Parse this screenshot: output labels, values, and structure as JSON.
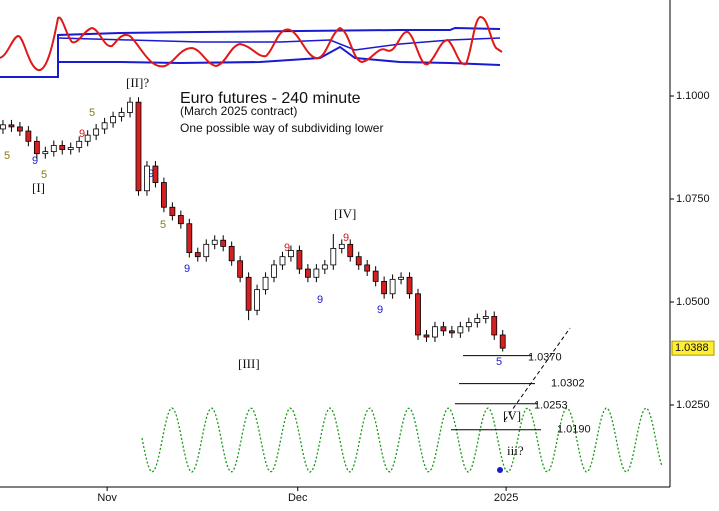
{
  "chart_data": {
    "type": "candlestick",
    "title": "Euro futures - 240 minute",
    "subtitle": "(March  2025 contract)",
    "note": "One possible way of subdividing lower",
    "candles": {
      "open": [
        1.092,
        1.093,
        1.0925,
        1.0915,
        1.089,
        1.086,
        1.0865,
        1.088,
        1.087,
        1.0875,
        1.089,
        1.0905,
        1.092,
        1.0935,
        1.095,
        1.096,
        1.0985,
        1.077,
        1.083,
        1.079,
        1.073,
        1.071,
        1.069,
        1.062,
        1.061,
        1.064,
        1.065,
        1.0635,
        1.06,
        1.056,
        1.048,
        1.053,
        1.056,
        1.059,
        1.061,
        1.0625,
        1.058,
        1.056,
        1.058,
        1.059,
        1.063,
        1.064,
        1.061,
        1.059,
        1.0575,
        1.055,
        1.052,
        1.0555,
        1.056,
        1.052,
        1.042,
        1.0415,
        1.044,
        1.043,
        1.0425,
        1.044,
        1.045,
        1.046,
        1.0465,
        1.042
      ],
      "high": [
        1.0942,
        1.0942,
        1.0937,
        1.0927,
        1.0902,
        1.0877,
        1.0892,
        1.0892,
        1.0887,
        1.0902,
        1.0917,
        1.0932,
        1.0947,
        1.0962,
        1.0972,
        1.0997,
        1.0997,
        1.0842,
        1.0842,
        1.0802,
        1.0742,
        1.0722,
        1.0702,
        1.0632,
        1.0652,
        1.0662,
        1.0662,
        1.0647,
        1.0612,
        1.0572,
        1.0542,
        1.0572,
        1.0602,
        1.0622,
        1.0637,
        1.0637,
        1.0592,
        1.0592,
        1.0602,
        1.0665,
        1.0652,
        1.0652,
        1.0622,
        1.0602,
        1.0587,
        1.0562,
        1.0567,
        1.0572,
        1.0572,
        1.0532,
        1.0432,
        1.0452,
        1.0452,
        1.0442,
        1.0452,
        1.0462,
        1.0472,
        1.048,
        1.0477,
        1.0432
      ],
      "low": [
        1.0908,
        1.0913,
        1.0903,
        1.0878,
        1.0848,
        1.0848,
        1.0853,
        1.0858,
        1.0858,
        1.0863,
        1.0878,
        1.0893,
        1.0908,
        1.0923,
        1.0938,
        1.0948,
        1.0758,
        1.0758,
        1.0778,
        1.0718,
        1.0698,
        1.0678,
        1.0608,
        1.0598,
        1.0598,
        1.0628,
        1.0623,
        1.0588,
        1.0548,
        1.0456,
        1.0468,
        1.0518,
        1.0548,
        1.0578,
        1.0598,
        1.0568,
        1.0548,
        1.0548,
        1.0568,
        1.0578,
        1.0618,
        1.0598,
        1.0578,
        1.0563,
        1.0538,
        1.0508,
        1.0508,
        1.0543,
        1.0508,
        1.0408,
        1.0403,
        1.0403,
        1.0418,
        1.0413,
        1.0413,
        1.0428,
        1.0438,
        1.0448,
        1.0408,
        1.038
      ],
      "close": [
        1.093,
        1.0925,
        1.0915,
        1.089,
        1.086,
        1.0865,
        1.088,
        1.087,
        1.0875,
        1.089,
        1.0905,
        1.092,
        1.0935,
        1.095,
        1.096,
        1.0985,
        1.077,
        1.083,
        1.079,
        1.073,
        1.071,
        1.069,
        1.062,
        1.061,
        1.064,
        1.065,
        1.0635,
        1.06,
        1.056,
        1.048,
        1.053,
        1.056,
        1.059,
        1.061,
        1.0625,
        1.058,
        1.056,
        1.058,
        1.059,
        1.063,
        1.064,
        1.061,
        1.059,
        1.0575,
        1.055,
        1.052,
        1.0555,
        1.056,
        1.052,
        1.042,
        1.0415,
        1.044,
        1.043,
        1.0425,
        1.044,
        1.045,
        1.046,
        1.0465,
        1.042,
        1.0388
      ]
    },
    "up_color": "#ffffff",
    "down_color": "#d42020",
    "xlim": [
      -0.35,
      78.75
    ],
    "xticks": [
      {
        "value": 12.3,
        "label": "Nov"
      },
      {
        "value": 34.8,
        "label": "Dec"
      },
      {
        "value": 59.4,
        "label": "2025"
      }
    ],
    "ylim": [
      1.0051,
      1.1233
    ],
    "yticks": [
      {
        "value": 1.025,
        "label": "1.0250"
      },
      {
        "value": 1.05,
        "label": "1.0500"
      },
      {
        "value": 1.075,
        "label": "1.0750"
      },
      {
        "value": 1.1,
        "label": "1.1000"
      }
    ],
    "last_price": 1.0388,
    "levels": [
      {
        "value": 1.037,
        "label": "1.0370"
      },
      {
        "value": 1.0302,
        "label": "1.0302"
      },
      {
        "value": 1.0253,
        "label": "1.0253"
      },
      {
        "value": 1.019,
        "label": "1.0190"
      }
    ],
    "annotations": [
      "[II]?",
      "5",
      "9",
      "5",
      "9",
      "5",
      "[I]",
      "9",
      "5",
      "9",
      "9",
      "[III]",
      "[IV]",
      "9",
      "9",
      "9",
      "5",
      "[V]",
      "iii?"
    ]
  }
}
